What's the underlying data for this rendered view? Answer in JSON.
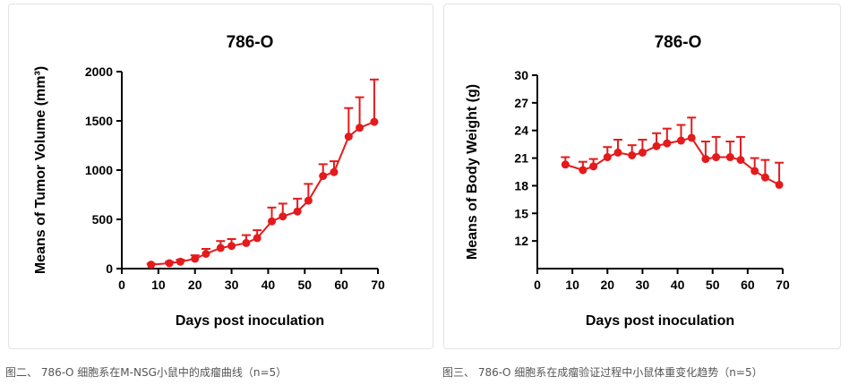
{
  "captions": {
    "left": "图二、 786-O 细胞系在M-NSG小鼠中的成瘤曲线（n=5）",
    "right": "图三、 786-O 细胞系在成瘤验证过程中小鼠体重变化趋势（n=5）"
  },
  "chart_data": [
    {
      "type": "line",
      "title": "786-O",
      "xlabel": "Days post inoculation",
      "ylabel": "Means of Tumor Volume (mm³)",
      "xlim": [
        0,
        70
      ],
      "ylim": [
        0,
        2000
      ],
      "xticks": [
        0,
        10,
        20,
        30,
        40,
        50,
        60,
        70
      ],
      "yticks": [
        0,
        500,
        1000,
        1500,
        2000
      ],
      "grid": false,
      "color": "#e41a1c",
      "x": [
        8,
        13,
        16,
        20,
        23,
        27,
        30,
        34,
        37,
        41,
        44,
        48,
        51,
        55,
        58,
        62,
        65,
        69
      ],
      "y": [
        40,
        55,
        70,
        100,
        150,
        210,
        230,
        260,
        310,
        480,
        530,
        580,
        690,
        940,
        980,
        1340,
        1430,
        1490
      ],
      "error": [
        10,
        15,
        20,
        35,
        50,
        70,
        70,
        80,
        80,
        140,
        130,
        130,
        170,
        120,
        110,
        290,
        310,
        430
      ]
    },
    {
      "type": "line",
      "title": "786-O",
      "xlabel": "Days post inoculation",
      "ylabel": "Means of Body Weight (g)",
      "xlim": [
        0,
        70
      ],
      "ylim": [
        9,
        30
      ],
      "xticks": [
        0,
        10,
        20,
        30,
        40,
        50,
        60,
        70
      ],
      "yticks": [
        12,
        15,
        18,
        21,
        24,
        27,
        30
      ],
      "grid": false,
      "color": "#e41a1c",
      "x": [
        8,
        13,
        16,
        20,
        23,
        27,
        30,
        34,
        37,
        41,
        44,
        48,
        51,
        55,
        58,
        62,
        65,
        69
      ],
      "y": [
        20.3,
        19.7,
        20.1,
        21.1,
        21.6,
        21.3,
        21.6,
        22.3,
        22.6,
        22.9,
        23.2,
        20.9,
        21.1,
        21.1,
        20.8,
        19.6,
        18.9,
        18.1
      ],
      "error": [
        0.8,
        0.9,
        0.8,
        1.1,
        1.4,
        1.1,
        1.4,
        1.4,
        1.6,
        1.7,
        2.2,
        1.9,
        2.2,
        1.7,
        2.5,
        1.4,
        1.9,
        2.4
      ]
    }
  ]
}
